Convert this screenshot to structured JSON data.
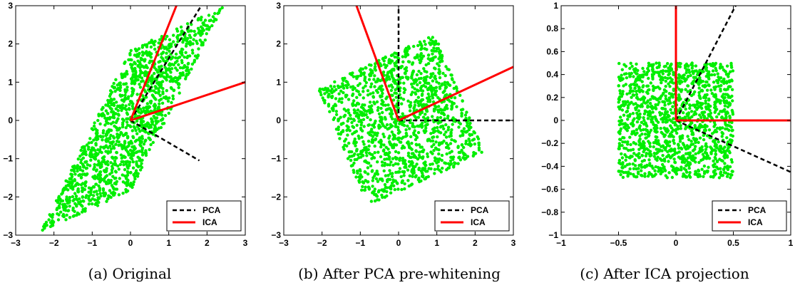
{
  "colors": {
    "points": "#00ee00",
    "pca": "#000000",
    "ica": "#ff0000"
  },
  "chart_data": [
    {
      "type": "scatter",
      "title": "(a) Original",
      "xlabel": "",
      "ylabel": "",
      "xlim": [
        -3,
        3
      ],
      "ylim": [
        -3,
        3
      ],
      "xticks": [
        -3,
        -2,
        -1,
        0,
        1,
        2,
        3
      ],
      "yticks": [
        -3,
        -2,
        -1,
        0,
        1,
        2,
        3
      ],
      "point_region": {
        "shape": "parallelogram",
        "corners": [
          [
            -2.35,
            -2.9
          ],
          [
            0.0,
            -1.85
          ],
          [
            2.4,
            2.95
          ],
          [
            0.0,
            1.85
          ]
        ],
        "count": 1400
      },
      "series": [
        {
          "name": "PCA",
          "style": "dashed",
          "color": "#000000",
          "segments": [
            [
              [
                0,
                0
              ],
              [
                1.8,
                -1.05
              ]
            ],
            [
              [
                0,
                0
              ],
              [
                1.85,
                3.0
              ]
            ]
          ]
        },
        {
          "name": "ICA",
          "style": "solid",
          "color": "#ff0000",
          "segments": [
            [
              [
                0,
                0
              ],
              [
                1.2,
                3.0
              ]
            ],
            [
              [
                0,
                0
              ],
              [
                3.0,
                1.0
              ]
            ]
          ]
        }
      ],
      "legend": {
        "position": "bottom-right",
        "entries": [
          "PCA",
          "ICA"
        ]
      }
    },
    {
      "type": "scatter",
      "title": "(b) After PCA pre-whitening",
      "xlabel": "",
      "ylabel": "",
      "xlim": [
        -3,
        3
      ],
      "ylim": [
        -3,
        3
      ],
      "xticks": [
        -3,
        -2,
        -1,
        0,
        1,
        2,
        3
      ],
      "yticks": [
        -3,
        -2,
        -1,
        0,
        1,
        2,
        3
      ],
      "point_region": {
        "shape": "parallelogram",
        "corners": [
          [
            -2.1,
            0.85
          ],
          [
            0.95,
            2.25
          ],
          [
            2.25,
            -0.85
          ],
          [
            -0.8,
            -2.25
          ]
        ],
        "count": 1400
      },
      "series": [
        {
          "name": "PCA",
          "style": "dashed",
          "color": "#000000",
          "segments": [
            [
              [
                0,
                0
              ],
              [
                0,
                3.0
              ]
            ],
            [
              [
                0,
                0
              ],
              [
                3.0,
                0
              ]
            ]
          ]
        },
        {
          "name": "ICA",
          "style": "solid",
          "color": "#ff0000",
          "segments": [
            [
              [
                0,
                0
              ],
              [
                -1.1,
                3.0
              ]
            ],
            [
              [
                0,
                0
              ],
              [
                3.0,
                1.4
              ]
            ]
          ]
        }
      ],
      "legend": {
        "position": "bottom-right",
        "entries": [
          "PCA",
          "ICA"
        ]
      }
    },
    {
      "type": "scatter",
      "title": "(c) After ICA projection",
      "xlabel": "",
      "ylabel": "",
      "xlim": [
        -1,
        1
      ],
      "ylim": [
        -1,
        1
      ],
      "xticks": [
        -1,
        -0.5,
        0,
        0.5,
        1
      ],
      "yticks": [
        -1,
        -0.8,
        -0.6,
        -0.4,
        -0.2,
        0,
        0.2,
        0.4,
        0.6,
        0.8,
        1
      ],
      "point_region": {
        "shape": "parallelogram",
        "corners": [
          [
            -0.5,
            -0.5
          ],
          [
            0.5,
            -0.5
          ],
          [
            0.5,
            0.5
          ],
          [
            -0.5,
            0.5
          ]
        ],
        "count": 1400
      },
      "series": [
        {
          "name": "PCA",
          "style": "dashed",
          "color": "#000000",
          "segments": [
            [
              [
                0,
                0
              ],
              [
                0.52,
                1.0
              ]
            ],
            [
              [
                0,
                0
              ],
              [
                1.0,
                -0.45
              ]
            ]
          ]
        },
        {
          "name": "ICA",
          "style": "solid",
          "color": "#ff0000",
          "segments": [
            [
              [
                0,
                0
              ],
              [
                0,
                1.0
              ]
            ],
            [
              [
                0,
                0
              ],
              [
                1.0,
                0
              ]
            ]
          ]
        }
      ],
      "legend": {
        "position": "bottom-right",
        "entries": [
          "PCA",
          "ICA"
        ]
      }
    }
  ]
}
